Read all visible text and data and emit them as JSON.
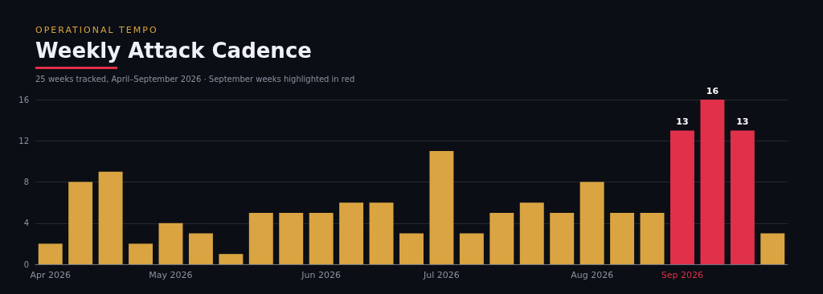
{
  "chart_data": {
    "type": "bar",
    "title": "Weekly Attack Cadence",
    "subtitle": "25 weeks tracked, April–September 2026 · September weeks highlighted in red",
    "annotations": [
      "OPERATIONAL TEMPO"
    ],
    "categories": [
      "Apr 2026",
      null,
      null,
      null,
      "May 2026",
      null,
      null,
      null,
      null,
      "Jun 2026",
      null,
      null,
      null,
      "Jul 2026",
      null,
      null,
      null,
      null,
      "Aug 2026",
      null,
      null,
      "Sep 2026",
      null,
      null,
      null
    ],
    "values": [
      2,
      8,
      9,
      2,
      4,
      3,
      1,
      5,
      5,
      5,
      6,
      6,
      3,
      11,
      3,
      5,
      6,
      5,
      8,
      5,
      5,
      13,
      16,
      13,
      3
    ],
    "colors": [
      "#d9a441",
      "#d9a441",
      "#d9a441",
      "#d9a441",
      "#d9a441",
      "#d9a441",
      "#d9a441",
      "#d9a441",
      "#d9a441",
      "#d9a441",
      "#d9a441",
      "#d9a441",
      "#d9a441",
      "#d9a441",
      "#d9a441",
      "#d9a441",
      "#d9a441",
      "#d9a441",
      "#d9a441",
      "#d9a441",
      "#d9a441",
      "#e0304a",
      "#e0304a",
      "#e0304a",
      "#d9a441"
    ],
    "value_labels": [
      null,
      null,
      null,
      null,
      null,
      null,
      null,
      null,
      null,
      null,
      null,
      null,
      null,
      null,
      null,
      null,
      null,
      null,
      null,
      null,
      null,
      "13",
      "16",
      "13",
      null
    ],
    "ylim": [
      0,
      16
    ],
    "yticks": [
      0,
      4,
      8,
      12,
      16
    ],
    "grid": "y"
  }
}
